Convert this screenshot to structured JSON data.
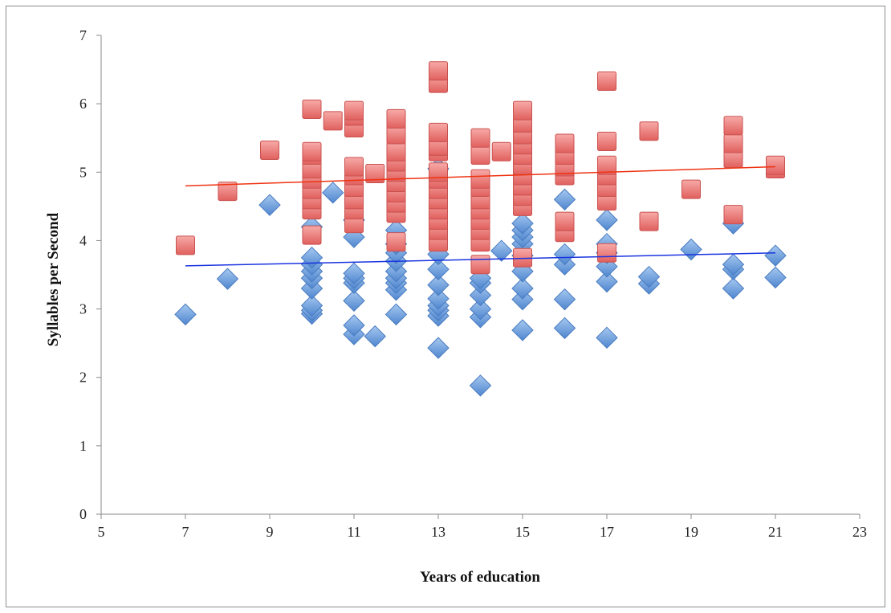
{
  "chart_data": {
    "type": "scatter",
    "title": "",
    "xlabel": "Years of education",
    "ylabel": "Syllables per Second",
    "xlim": [
      5,
      23
    ],
    "ylim": [
      0,
      7
    ],
    "xticks": [
      5,
      7,
      9,
      11,
      13,
      15,
      17,
      19,
      21,
      23
    ],
    "yticks": [
      0,
      1,
      2,
      3,
      4,
      5,
      6,
      7
    ],
    "grid": false,
    "legend": "none",
    "series": [
      {
        "marker": "diamond",
        "color": "#6c9fdd",
        "trendline_color": "#1a34e0",
        "trendline": [
          [
            7,
            3.63
          ],
          [
            21,
            3.82
          ]
        ],
        "points": [
          [
            7,
            2.92
          ],
          [
            8,
            3.44
          ],
          [
            9,
            4.52
          ],
          [
            10,
            2.93
          ],
          [
            10,
            2.98
          ],
          [
            10,
            3.05
          ],
          [
            10,
            3.3
          ],
          [
            10,
            3.45
          ],
          [
            10,
            3.55
          ],
          [
            10,
            3.65
          ],
          [
            10,
            3.75
          ],
          [
            10,
            4.2
          ],
          [
            10.5,
            4.7
          ],
          [
            11,
            2.63
          ],
          [
            11,
            2.76
          ],
          [
            11,
            3.12
          ],
          [
            11,
            3.38
          ],
          [
            11,
            3.45
          ],
          [
            11,
            3.52
          ],
          [
            11,
            4.05
          ],
          [
            11,
            4.3
          ],
          [
            11.5,
            2.6
          ],
          [
            12,
            2.92
          ],
          [
            12,
            3.28
          ],
          [
            12,
            3.38
          ],
          [
            12,
            3.45
          ],
          [
            12,
            3.55
          ],
          [
            12,
            3.7
          ],
          [
            12,
            3.82
          ],
          [
            12,
            3.95
          ],
          [
            12,
            4.15
          ],
          [
            13,
            2.43
          ],
          [
            13,
            2.9
          ],
          [
            13,
            2.98
          ],
          [
            13,
            3.05
          ],
          [
            13,
            3.15
          ],
          [
            13,
            3.35
          ],
          [
            13,
            3.58
          ],
          [
            13,
            3.8
          ],
          [
            13,
            5.05
          ],
          [
            14,
            1.88
          ],
          [
            14,
            2.88
          ],
          [
            14,
            3.0
          ],
          [
            14,
            3.2
          ],
          [
            14,
            3.38
          ],
          [
            14,
            3.45
          ],
          [
            14.5,
            3.85
          ],
          [
            15,
            2.69
          ],
          [
            15,
            3.14
          ],
          [
            15,
            3.3
          ],
          [
            15,
            3.55
          ],
          [
            15,
            3.78
          ],
          [
            15,
            3.95
          ],
          [
            15,
            4.05
          ],
          [
            15,
            4.15
          ],
          [
            15,
            4.25
          ],
          [
            16,
            2.72
          ],
          [
            16,
            3.14
          ],
          [
            16,
            3.65
          ],
          [
            16,
            3.8
          ],
          [
            16,
            4.6
          ],
          [
            17,
            2.58
          ],
          [
            17,
            3.4
          ],
          [
            17,
            3.62
          ],
          [
            17,
            3.82
          ],
          [
            17,
            3.95
          ],
          [
            17,
            4.3
          ],
          [
            18,
            3.37
          ],
          [
            18,
            3.47
          ],
          [
            19,
            3.87
          ],
          [
            20,
            3.3
          ],
          [
            20,
            3.58
          ],
          [
            20,
            3.65
          ],
          [
            20,
            4.25
          ],
          [
            21,
            3.46
          ],
          [
            21,
            3.78
          ]
        ]
      },
      {
        "marker": "square",
        "color": "#ee7a78",
        "trendline_color": "#ee3311",
        "trendline": [
          [
            7,
            4.8
          ],
          [
            21,
            5.08
          ]
        ],
        "points": [
          [
            7,
            3.93
          ],
          [
            8,
            4.72
          ],
          [
            9,
            5.32
          ],
          [
            10,
            4.08
          ],
          [
            10,
            4.45
          ],
          [
            10,
            4.6
          ],
          [
            10,
            4.75
          ],
          [
            10,
            4.9
          ],
          [
            10,
            5.05
          ],
          [
            10,
            5.25
          ],
          [
            10,
            5.3
          ],
          [
            10,
            5.92
          ],
          [
            10.5,
            5.75
          ],
          [
            11,
            4.25
          ],
          [
            11,
            4.45
          ],
          [
            11,
            4.6
          ],
          [
            11,
            4.78
          ],
          [
            11,
            4.95
          ],
          [
            11,
            5.08
          ],
          [
            11,
            5.65
          ],
          [
            11,
            5.82
          ],
          [
            11,
            5.9
          ],
          [
            11.5,
            4.98
          ],
          [
            12,
            3.98
          ],
          [
            12,
            4.4
          ],
          [
            12,
            4.55
          ],
          [
            12,
            4.7
          ],
          [
            12,
            4.85
          ],
          [
            12,
            5.0
          ],
          [
            12,
            5.15
          ],
          [
            12,
            5.3
          ],
          [
            12,
            5.55
          ],
          [
            12,
            5.78
          ],
          [
            13,
            3.98
          ],
          [
            13,
            4.15
          ],
          [
            13,
            4.3
          ],
          [
            13,
            4.45
          ],
          [
            13,
            4.6
          ],
          [
            13,
            4.75
          ],
          [
            13,
            4.9
          ],
          [
            13,
            5.0
          ],
          [
            13,
            5.3
          ],
          [
            13,
            5.38
          ],
          [
            13,
            5.58
          ],
          [
            13,
            6.3
          ],
          [
            13,
            6.48
          ],
          [
            14,
            3.65
          ],
          [
            14,
            3.98
          ],
          [
            14,
            4.15
          ],
          [
            14,
            4.3
          ],
          [
            14,
            4.45
          ],
          [
            14,
            4.6
          ],
          [
            14,
            4.78
          ],
          [
            14,
            4.9
          ],
          [
            14,
            5.25
          ],
          [
            14,
            5.5
          ],
          [
            14.5,
            5.3
          ],
          [
            15,
            3.75
          ],
          [
            15,
            4.5
          ],
          [
            15,
            4.65
          ],
          [
            15,
            4.8
          ],
          [
            15,
            4.95
          ],
          [
            15,
            5.1
          ],
          [
            15,
            5.25
          ],
          [
            15,
            5.4
          ],
          [
            15,
            5.55
          ],
          [
            15,
            5.72
          ],
          [
            15,
            5.9
          ],
          [
            16,
            4.12
          ],
          [
            16,
            4.28
          ],
          [
            16,
            4.95
          ],
          [
            16,
            5.08
          ],
          [
            16,
            5.25
          ],
          [
            16,
            5.42
          ],
          [
            17,
            3.82
          ],
          [
            17,
            4.58
          ],
          [
            17,
            4.78
          ],
          [
            17,
            4.95
          ],
          [
            17,
            5.1
          ],
          [
            17,
            5.45
          ],
          [
            17,
            6.33
          ],
          [
            18,
            4.28
          ],
          [
            18,
            5.6
          ],
          [
            19,
            4.75
          ],
          [
            20,
            4.38
          ],
          [
            20,
            5.2
          ],
          [
            20,
            5.42
          ],
          [
            20,
            5.68
          ],
          [
            21,
            5.05
          ],
          [
            21,
            5.1
          ]
        ]
      }
    ]
  }
}
